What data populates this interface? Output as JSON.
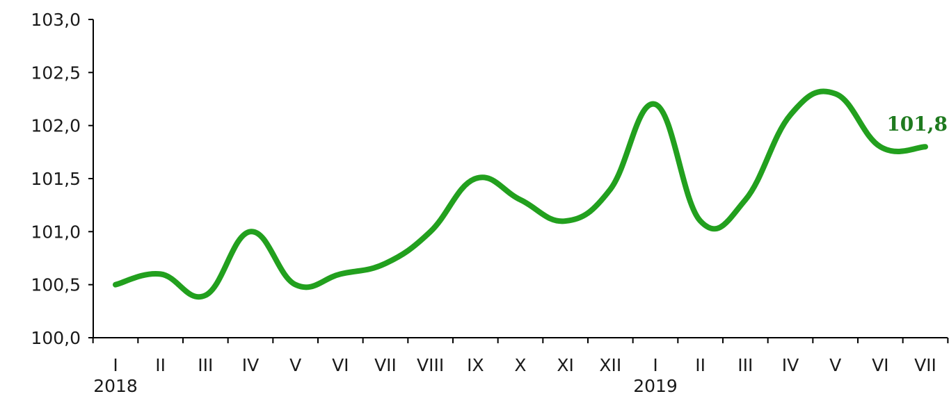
{
  "chart_data": {
    "type": "line",
    "title": "",
    "categories": [
      "I",
      "II",
      "III",
      "IV",
      "V",
      "VI",
      "VII",
      "VIII",
      "IX",
      "X",
      "XI",
      "XII",
      "I",
      "II",
      "III",
      "IV",
      "V",
      "VI",
      "VII"
    ],
    "years": [
      {
        "label": "2018",
        "index": 0
      },
      {
        "label": "2019",
        "index": 12
      }
    ],
    "y_ticks": [
      "100,0",
      "100,5",
      "101,0",
      "101,5",
      "102,0",
      "102,5",
      "103,0"
    ],
    "ylim": [
      100.0,
      103.0
    ],
    "series": [
      {
        "values": [
          100.5,
          100.6,
          100.4,
          101.0,
          100.5,
          100.6,
          100.7,
          101.0,
          101.5,
          101.3,
          101.1,
          101.4,
          102.2,
          101.1,
          101.3,
          102.1,
          102.3,
          101.8,
          101.8
        ],
        "color": "#22a01e"
      }
    ],
    "end_label": "101,8",
    "grid": false,
    "colors": {
      "line": "#22a01e",
      "end_label": "#1f7a1f",
      "title": "#e87e14"
    }
  }
}
